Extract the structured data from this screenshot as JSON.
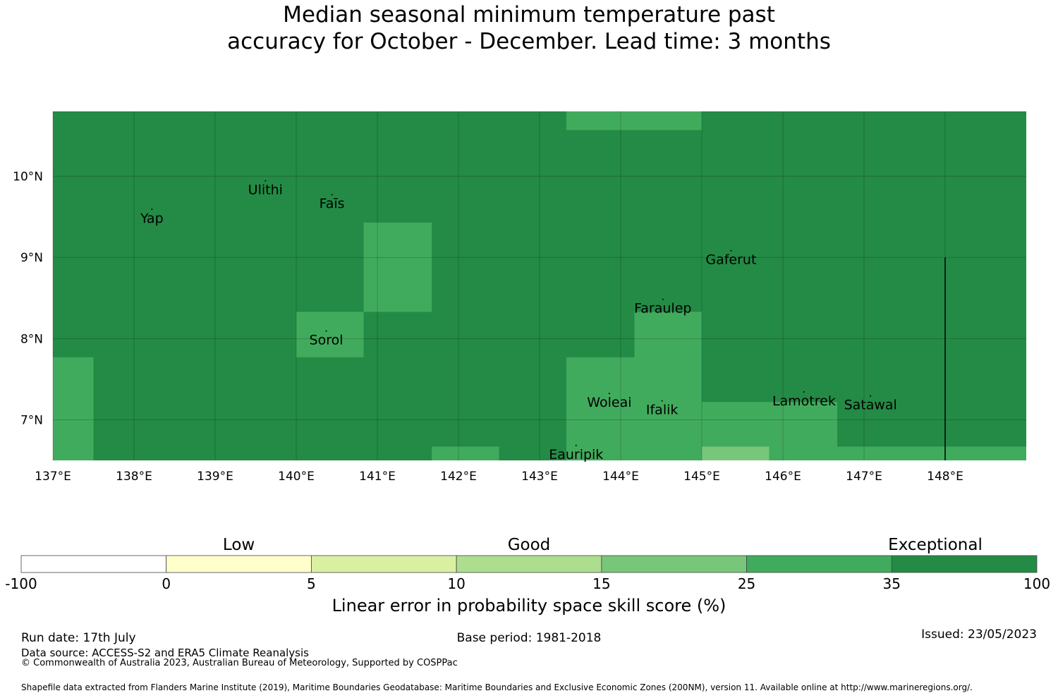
{
  "title": {
    "line1": "Median seasonal minimum temperature past",
    "line2": "accuracy for October - December. Lead time: 3 months"
  },
  "map": {
    "lon_range": [
      137.0,
      149.0
    ],
    "lat_range": [
      6.5,
      10.8
    ],
    "lon_ticks": [
      "137°E",
      "138°E",
      "139°E",
      "140°E",
      "141°E",
      "142°E",
      "143°E",
      "144°E",
      "145°E",
      "146°E",
      "147°E",
      "148°E"
    ],
    "lat_ticks": [
      "7°N",
      "8°N",
      "9°N",
      "10°N"
    ],
    "gridlines": true,
    "background_color": "#238b45",
    "cells": [
      {
        "lon": [
          137.0,
          137.5
        ],
        "lat": [
          6.5,
          7.77
        ],
        "color": "#41ab5d"
      },
      {
        "lon": [
          140.0,
          140.83
        ],
        "lat": [
          7.77,
          8.33
        ],
        "color": "#41ab5d"
      },
      {
        "lon": [
          140.83,
          141.67
        ],
        "lat": [
          8.33,
          9.43
        ],
        "color": "#41ab5d"
      },
      {
        "lon": [
          141.67,
          142.5
        ],
        "lat": [
          6.5,
          6.67
        ],
        "color": "#41ab5d"
      },
      {
        "lon": [
          143.33,
          145.0
        ],
        "lat": [
          10.57,
          10.8
        ],
        "color": "#41ab5d"
      },
      {
        "lon": [
          143.33,
          144.17
        ],
        "lat": [
          6.5,
          7.77
        ],
        "color": "#41ab5d"
      },
      {
        "lon": [
          144.17,
          145.0
        ],
        "lat": [
          6.5,
          8.33
        ],
        "color": "#41ab5d"
      },
      {
        "lon": [
          145.0,
          146.67
        ],
        "lat": [
          6.5,
          7.22
        ],
        "color": "#41ab5d"
      },
      {
        "lon": [
          145.0,
          145.83
        ],
        "lat": [
          6.5,
          6.67
        ],
        "color": "#78c679"
      },
      {
        "lon": [
          146.67,
          149.0
        ],
        "lat": [
          6.5,
          6.67
        ],
        "color": "#41ab5d"
      }
    ],
    "places": [
      {
        "name": "Yap",
        "lon": 138.22,
        "lat": 9.49
      },
      {
        "name": "Ulithi",
        "lon": 139.62,
        "lat": 9.84
      },
      {
        "name": "Faīs",
        "lon": 140.44,
        "lat": 9.67
      },
      {
        "name": "Gaferut",
        "lon": 145.36,
        "lat": 8.98
      },
      {
        "name": "Faraulep",
        "lon": 144.52,
        "lat": 8.38
      },
      {
        "name": "Sorol",
        "lon": 140.37,
        "lat": 7.99
      },
      {
        "name": "Woleai",
        "lon": 143.86,
        "lat": 7.22
      },
      {
        "name": "Ifalik",
        "lon": 144.51,
        "lat": 7.13
      },
      {
        "name": "Lamotrek",
        "lon": 146.26,
        "lat": 7.24
      },
      {
        "name": "Satawal",
        "lon": 147.08,
        "lat": 7.19
      },
      {
        "name": "Eauripik",
        "lon": 143.45,
        "lat": 6.58
      }
    ],
    "boundary_line": {
      "lon": 148.0,
      "lat": [
        6.5,
        9.0
      ]
    }
  },
  "colorbar": {
    "boundaries": [
      "-100",
      "0",
      "5",
      "10",
      "15",
      "25",
      "35",
      "100"
    ],
    "colors": [
      "#ffffff",
      "#ffffcc",
      "#d9f0a3",
      "#addd8e",
      "#78c679",
      "#41ab5d",
      "#238b45"
    ],
    "categories": [
      {
        "label": "Low",
        "segment": 1.5
      },
      {
        "label": "Good",
        "segment": 3.5
      },
      {
        "label": "Exceptional",
        "segment": 6.3
      }
    ],
    "title": "Linear error in probability space skill score (%)"
  },
  "footer": {
    "run_date": "Run date: 17th July",
    "base_period": "Base period: 1981-2018",
    "issued": "Issued: 23/05/2023",
    "data_source": "Data source: ACCESS-S2 and ERA5 Climate Reanalysis",
    "copyright": "© Commonwealth of Australia 2023, Australian Bureau of Meteorology, Supported by COSPPac",
    "shapefile": "Shapefile data extracted from Flanders Marine Institute (2019), Maritime Boundaries Geodatabase: Maritime Boundaries and Exclusive Economic Zones (200NM), version 11. Available online at http://www.marineregions.org/."
  }
}
